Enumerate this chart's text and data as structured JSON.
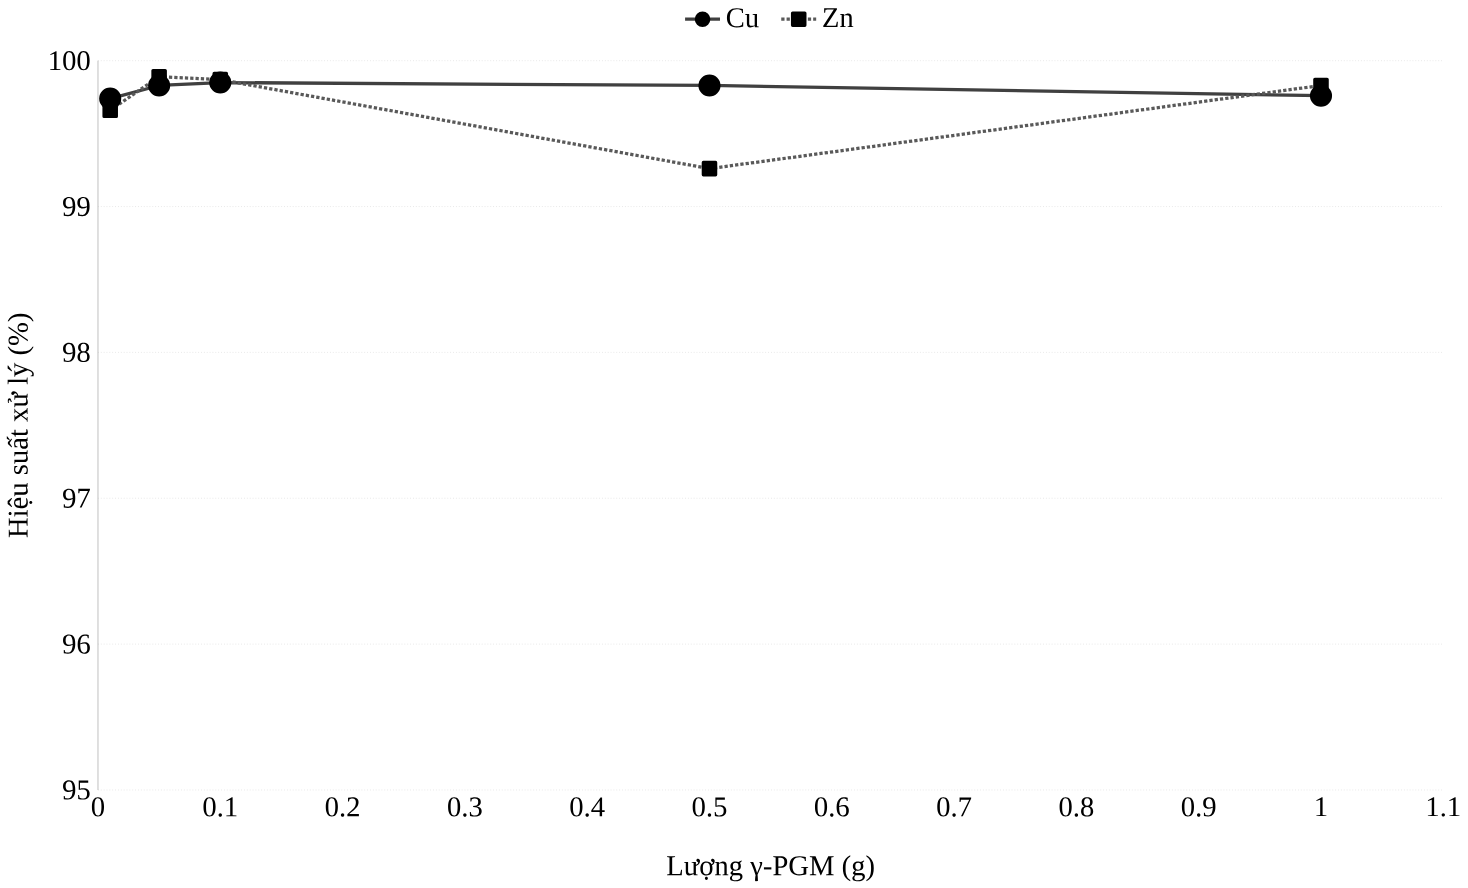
{
  "chart_data": {
    "type": "line",
    "xlabel": "Lượng γ-PGM (g)",
    "ylabel": "Hiệu suất xử lý (%)",
    "x": [
      0.01,
      0.05,
      0.1,
      0.5,
      1
    ],
    "series": [
      {
        "name": "Cu",
        "color": "#404040",
        "values": [
          99.74,
          99.83,
          99.85,
          99.83,
          99.76
        ],
        "marker": "circle",
        "line_style": "solid"
      },
      {
        "name": "Zn",
        "color": "#595959",
        "values": [
          99.66,
          99.89,
          99.87,
          99.26,
          99.83
        ],
        "marker": "square",
        "line_style": "dotted"
      }
    ],
    "xlim": [
      0,
      1.1
    ],
    "xticks": [
      0,
      0.1,
      0.2,
      0.3,
      0.4,
      0.5,
      0.6,
      0.7,
      0.8,
      0.9,
      1,
      1.1
    ],
    "ylim": [
      95,
      100
    ],
    "yticks": [
      95,
      96,
      97,
      98,
      99,
      100
    ],
    "grid": "y",
    "legend": "top"
  }
}
